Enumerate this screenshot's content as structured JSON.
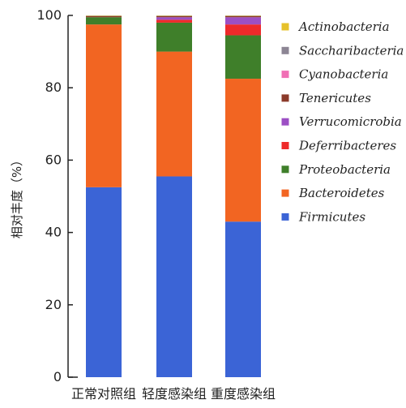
{
  "chart_data": {
    "type": "bar",
    "stacked": true,
    "title": "",
    "xlabel": "",
    "ylabel": "相对丰度（%）",
    "ylim": [
      0,
      100
    ],
    "yticks": [
      0,
      20,
      40,
      60,
      80,
      100
    ],
    "grid": false,
    "legend_position": "right",
    "categories": [
      "正常对照组",
      "轻度感染组",
      "重度感染组"
    ],
    "series": [
      {
        "name": "Firmicutes",
        "color": "#3b64d6",
        "values": [
          52.5,
          55.5,
          43.0
        ]
      },
      {
        "name": "Bacteroidetes",
        "color": "#f26522",
        "values": [
          45.0,
          34.5,
          39.5
        ]
      },
      {
        "name": "Proteobacteria",
        "color": "#3f7f2a",
        "values": [
          2.0,
          8.0,
          12.0
        ]
      },
      {
        "name": "Deferribacteres",
        "color": "#ee2a2a",
        "values": [
          0.0,
          0.8,
          3.0
        ]
      },
      {
        "name": "Verrucomicrobia",
        "color": "#9c4fc4",
        "values": [
          0.0,
          0.7,
          2.0
        ]
      },
      {
        "name": "Tenericutes",
        "color": "#8b3a2a",
        "values": [
          0.3,
          0.3,
          0.3
        ]
      },
      {
        "name": "Cyanobacteria",
        "color": "#f06fb5",
        "values": [
          0.0,
          0.0,
          0.0
        ]
      },
      {
        "name": "Saccharibacteria",
        "color": "#8c8594",
        "values": [
          0.1,
          0.1,
          0.1
        ]
      },
      {
        "name": "Actinobacteria",
        "color": "#e6c12a",
        "values": [
          0.1,
          0.1,
          0.1
        ]
      }
    ],
    "legend_order": [
      "Actinobacteria",
      "Saccharibacteria",
      "Cyanobacteria",
      "Tenericutes",
      "Verrucomicrobia",
      "Deferribacteres",
      "Proteobacteria",
      "Bacteroidetes",
      "Firmicutes"
    ]
  }
}
